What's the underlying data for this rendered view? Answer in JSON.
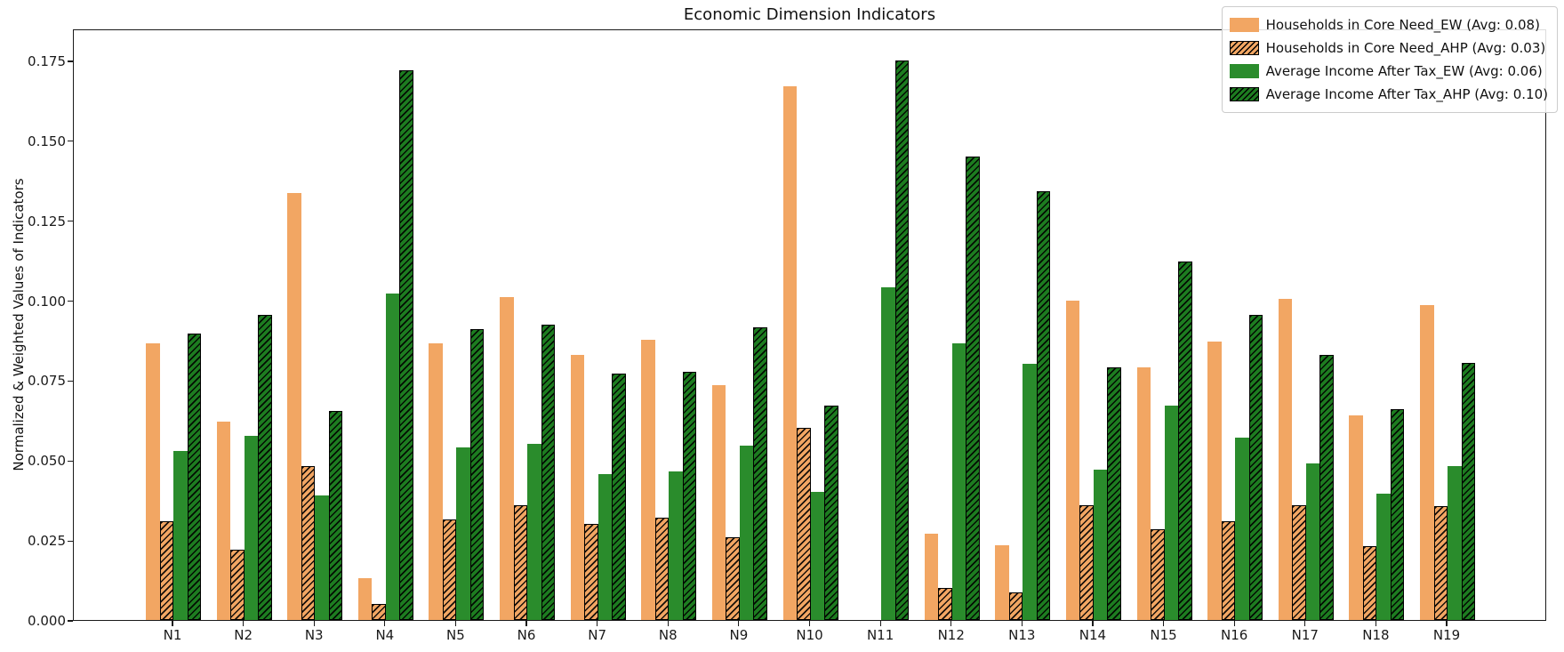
{
  "chart_data": {
    "type": "bar",
    "title": "Economic Dimension Indicators",
    "xlabel": "",
    "ylabel": "Normalized & Weighted Values of Indicators",
    "categories": [
      "N1",
      "N2",
      "N3",
      "N4",
      "N5",
      "N6",
      "N7",
      "N8",
      "N9",
      "N10",
      "N11",
      "N12",
      "N13",
      "N14",
      "N15",
      "N16",
      "N17",
      "N18",
      "N19"
    ],
    "series": [
      {
        "name": "Households in Core Need_EW (Avg: 0.08)",
        "avg_label": "Avg: 0.08",
        "color": "#f2a663",
        "hatch": false,
        "values": [
          0.0865,
          0.062,
          0.1335,
          0.013,
          0.0865,
          0.101,
          0.083,
          0.0875,
          0.0735,
          0.167,
          0,
          0.027,
          0.0235,
          0.1,
          0.079,
          0.087,
          0.1005,
          0.064,
          0.0985
        ]
      },
      {
        "name": "Households in Core Need_AHP (Avg: 0.03)",
        "avg_label": "Avg: 0.03",
        "color": "#f2a663",
        "hatch": true,
        "values": [
          0.031,
          0.022,
          0.048,
          0.005,
          0.0315,
          0.036,
          0.03,
          0.032,
          0.026,
          0.06,
          0,
          0.01,
          0.0085,
          0.036,
          0.0285,
          0.031,
          0.036,
          0.023,
          0.0355
        ]
      },
      {
        "name": "Average Income After Tax_EW (Avg: 0.06)",
        "avg_label": "Avg: 0.06",
        "color": "#2a8c2c",
        "hatch": false,
        "values": [
          0.053,
          0.0575,
          0.039,
          0.102,
          0.054,
          0.055,
          0.0455,
          0.0465,
          0.0545,
          0.04,
          0.104,
          0.0865,
          0.08,
          0.047,
          0.067,
          0.057,
          0.049,
          0.0395,
          0.048
        ]
      },
      {
        "name": "Average Income After Tax_AHP (Avg: 0.10)",
        "avg_label": "Avg: 0.10",
        "color": "#1d7c20",
        "hatch": true,
        "values": [
          0.0895,
          0.0955,
          0.0655,
          0.172,
          0.091,
          0.0925,
          0.077,
          0.0775,
          0.0915,
          0.067,
          0.175,
          0.145,
          0.134,
          0.079,
          0.112,
          0.0955,
          0.083,
          0.066,
          0.0805
        ]
      }
    ],
    "yticks": [
      "0.000",
      "0.025",
      "0.050",
      "0.075",
      "0.100",
      "0.125",
      "0.150",
      "0.175"
    ],
    "ytick_values": [
      0.0,
      0.025,
      0.05,
      0.075,
      0.1,
      0.125,
      0.15,
      0.175
    ],
    "ylim": [
      0,
      0.185
    ],
    "grid": false,
    "legend_position": "upper right"
  }
}
